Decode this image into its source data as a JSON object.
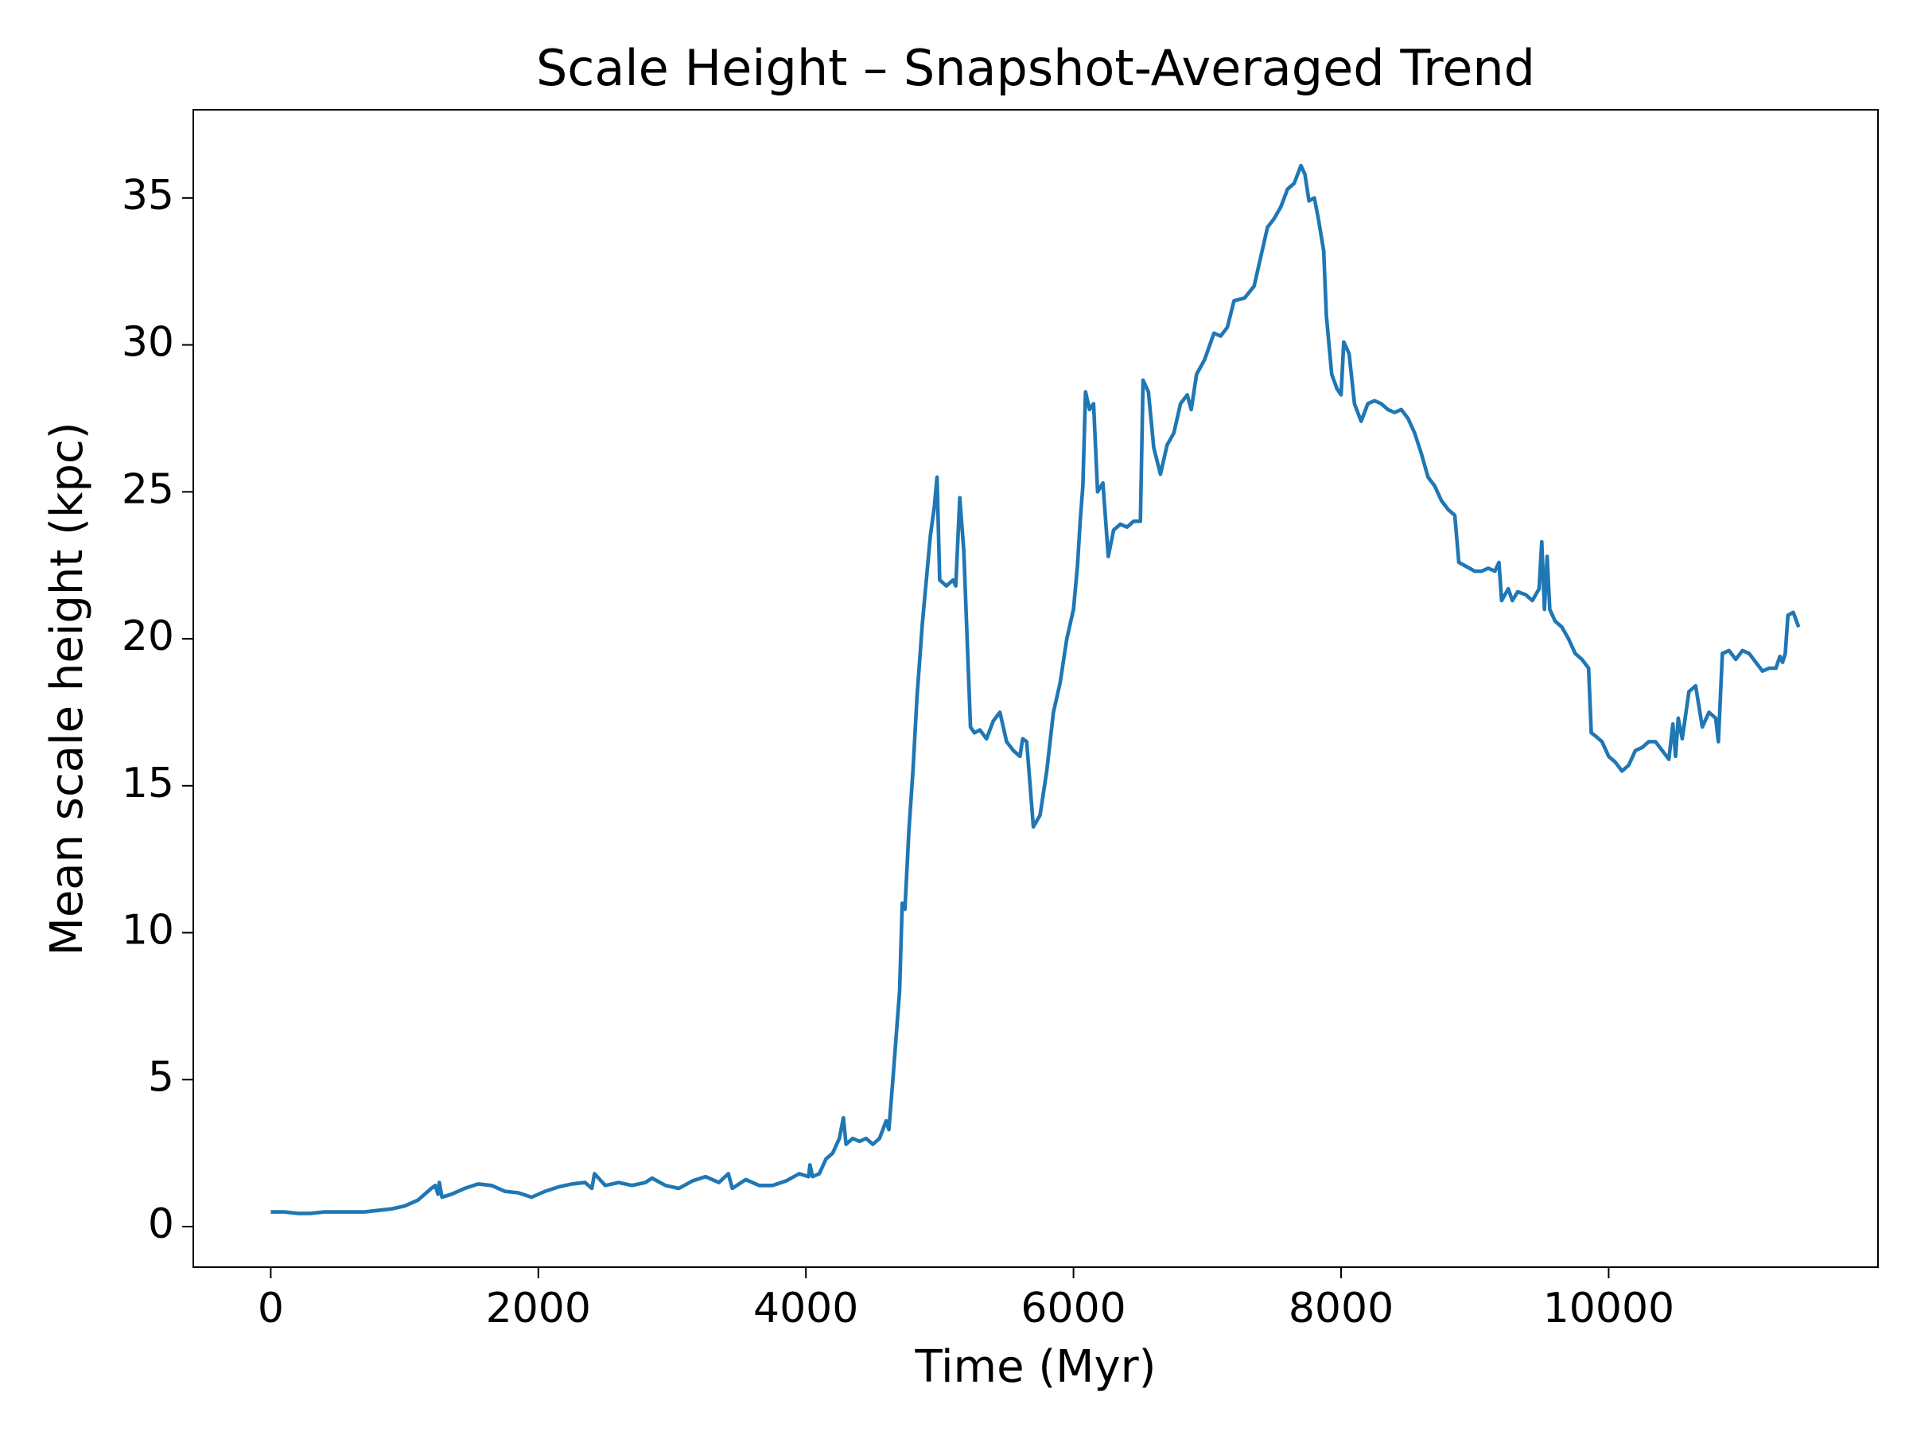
{
  "chart_data": {
    "type": "line",
    "title": "Scale Height – Snapshot-Averaged Trend",
    "xlabel": "Time (Myr)",
    "ylabel": "Mean scale height (kpc)",
    "x": [
      0,
      100,
      200,
      300,
      400,
      500,
      600,
      700,
      800,
      900,
      1000,
      1100,
      1150,
      1200,
      1230,
      1250,
      1260,
      1280,
      1350,
      1450,
      1550,
      1650,
      1750,
      1850,
      1950,
      2050,
      2150,
      2250,
      2350,
      2400,
      2420,
      2500,
      2600,
      2700,
      2800,
      2850,
      2950,
      3050,
      3150,
      3250,
      3350,
      3420,
      3450,
      3550,
      3650,
      3750,
      3850,
      3950,
      4020,
      4030,
      4050,
      4100,
      4150,
      4200,
      4250,
      4280,
      4300,
      4350,
      4400,
      4450,
      4500,
      4550,
      4600,
      4620,
      4650,
      4700,
      4720,
      4740,
      4770,
      4800,
      4830,
      4870,
      4900,
      4930,
      4960,
      4980,
      5000,
      5050,
      5100,
      5120,
      5150,
      5180,
      5230,
      5260,
      5300,
      5350,
      5400,
      5450,
      5500,
      5550,
      5600,
      5620,
      5650,
      5700,
      5750,
      5800,
      5850,
      5900,
      5950,
      6000,
      6030,
      6050,
      6070,
      6090,
      6120,
      6150,
      6180,
      6220,
      6260,
      6300,
      6350,
      6400,
      6450,
      6500,
      6520,
      6560,
      6600,
      6650,
      6700,
      6750,
      6800,
      6850,
      6880,
      6920,
      6980,
      7050,
      7100,
      7150,
      7200,
      7280,
      7350,
      7400,
      7450,
      7500,
      7550,
      7600,
      7650,
      7700,
      7730,
      7760,
      7800,
      7830,
      7870,
      7890,
      7930,
      7970,
      8000,
      8020,
      8060,
      8100,
      8150,
      8200,
      8250,
      8300,
      8350,
      8400,
      8450,
      8500,
      8550,
      8600,
      8650,
      8700,
      8750,
      8800,
      8850,
      8880,
      8920,
      9000,
      9050,
      9100,
      9150,
      9180,
      9200,
      9250,
      9280,
      9320,
      9380,
      9430,
      9480,
      9500,
      9520,
      9540,
      9560,
      9600,
      9650,
      9700,
      9750,
      9800,
      9850,
      9870,
      9900,
      9950,
      10000,
      10050,
      10100,
      10150,
      10200,
      10250,
      10300,
      10350,
      10400,
      10450,
      10480,
      10500,
      10520,
      10550,
      10600,
      10650,
      10700,
      10750,
      10800,
      10820,
      10850,
      10900,
      10950,
      11000,
      11050,
      11100,
      11150,
      11200,
      11250,
      11280,
      11300,
      11320,
      11340,
      11380,
      11420
    ],
    "series": [
      {
        "name": "Mean scale height",
        "color": "#1f77b4",
        "values": [
          0.5,
          0.5,
          0.45,
          0.45,
          0.5,
          0.5,
          0.5,
          0.5,
          0.55,
          0.6,
          0.7,
          0.9,
          1.1,
          1.3,
          1.4,
          1.1,
          1.5,
          1.0,
          1.1,
          1.3,
          1.45,
          1.4,
          1.2,
          1.15,
          1.0,
          1.2,
          1.35,
          1.45,
          1.5,
          1.3,
          1.8,
          1.4,
          1.5,
          1.4,
          1.5,
          1.65,
          1.4,
          1.3,
          1.55,
          1.7,
          1.5,
          1.8,
          1.3,
          1.6,
          1.4,
          1.4,
          1.55,
          1.8,
          1.7,
          2.1,
          1.7,
          1.8,
          2.3,
          2.5,
          3.0,
          3.7,
          2.8,
          3.0,
          2.9,
          3.0,
          2.8,
          3.0,
          3.6,
          3.3,
          5.0,
          8.0,
          11.0,
          10.8,
          13.5,
          15.5,
          18.0,
          20.5,
          22.0,
          23.5,
          24.5,
          25.5,
          22.0,
          21.8,
          22.0,
          21.8,
          24.8,
          23.0,
          17.0,
          16.8,
          16.9,
          16.6,
          17.2,
          17.5,
          16.5,
          16.2,
          16.0,
          16.6,
          16.5,
          13.6,
          14.0,
          15.5,
          17.5,
          18.5,
          20.0,
          21.0,
          22.5,
          24.0,
          25.2,
          28.4,
          27.8,
          28.0,
          25.0,
          25.3,
          22.8,
          23.7,
          23.9,
          23.8,
          24.0,
          24.0,
          28.8,
          28.4,
          26.5,
          25.6,
          26.6,
          27.0,
          28.0,
          28.3,
          27.8,
          29.0,
          29.5,
          30.4,
          30.3,
          30.6,
          31.5,
          31.6,
          32.0,
          33.0,
          34.0,
          34.3,
          34.7,
          35.3,
          35.5,
          36.1,
          35.8,
          34.9,
          35.0,
          34.3,
          33.2,
          31.0,
          29.0,
          28.5,
          28.3,
          30.1,
          29.7,
          28.0,
          27.4,
          28.0,
          28.1,
          28.0,
          27.8,
          27.7,
          27.8,
          27.5,
          27.0,
          26.3,
          25.5,
          25.2,
          24.7,
          24.4,
          24.2,
          22.6,
          22.5,
          22.3,
          22.3,
          22.4,
          22.3,
          22.6,
          21.3,
          21.7,
          21.3,
          21.6,
          21.5,
          21.3,
          21.7,
          23.3,
          21.0,
          22.8,
          21.0,
          20.6,
          20.4,
          20.0,
          19.5,
          19.3,
          19.0,
          16.8,
          16.7,
          16.5,
          16.0,
          15.8,
          15.5,
          15.7,
          16.2,
          16.3,
          16.5,
          16.5,
          16.2,
          15.9,
          17.1,
          16.0,
          17.3,
          16.6,
          18.2,
          18.4,
          17.0,
          17.5,
          17.3,
          16.5,
          19.5,
          19.6,
          19.3,
          19.6,
          19.5,
          19.2,
          18.9,
          19.0,
          19.0,
          19.4,
          19.2,
          19.5,
          20.8,
          20.9,
          20.4
        ]
      }
    ],
    "xlim": [
      -579,
      12013
    ],
    "ylim": [
      -1.38,
      38.0
    ],
    "xticks": [
      0,
      2000,
      4000,
      6000,
      8000,
      10000
    ],
    "yticks": [
      0,
      5,
      10,
      15,
      20,
      25,
      30,
      35
    ]
  }
}
